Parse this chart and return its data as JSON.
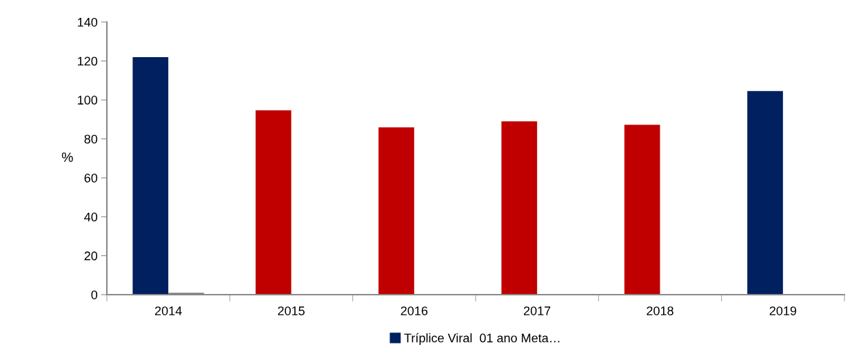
{
  "chart_data": {
    "type": "bar",
    "ylabel": "%",
    "categories": [
      "2014",
      "2015",
      "2016",
      "2017",
      "2018",
      "2019"
    ],
    "series": [
      {
        "name": "Tríplice Viral  01 ano Meta…",
        "color": "#002060",
        "colors": [
          "#002060",
          "#c00000",
          "#c00000",
          "#c00000",
          "#c00000",
          "#002060"
        ],
        "values": [
          122,
          94.7,
          85.9,
          89.0,
          87.2,
          104.6
        ]
      },
      {
        "color": "#808080",
        "values": [
          1,
          0,
          0,
          0,
          0,
          0
        ]
      }
    ],
    "ylim": [
      0,
      140
    ],
    "yticks": [
      0,
      20,
      40,
      60,
      80,
      100,
      120,
      140
    ],
    "grid": false,
    "legend": "bottom"
  }
}
